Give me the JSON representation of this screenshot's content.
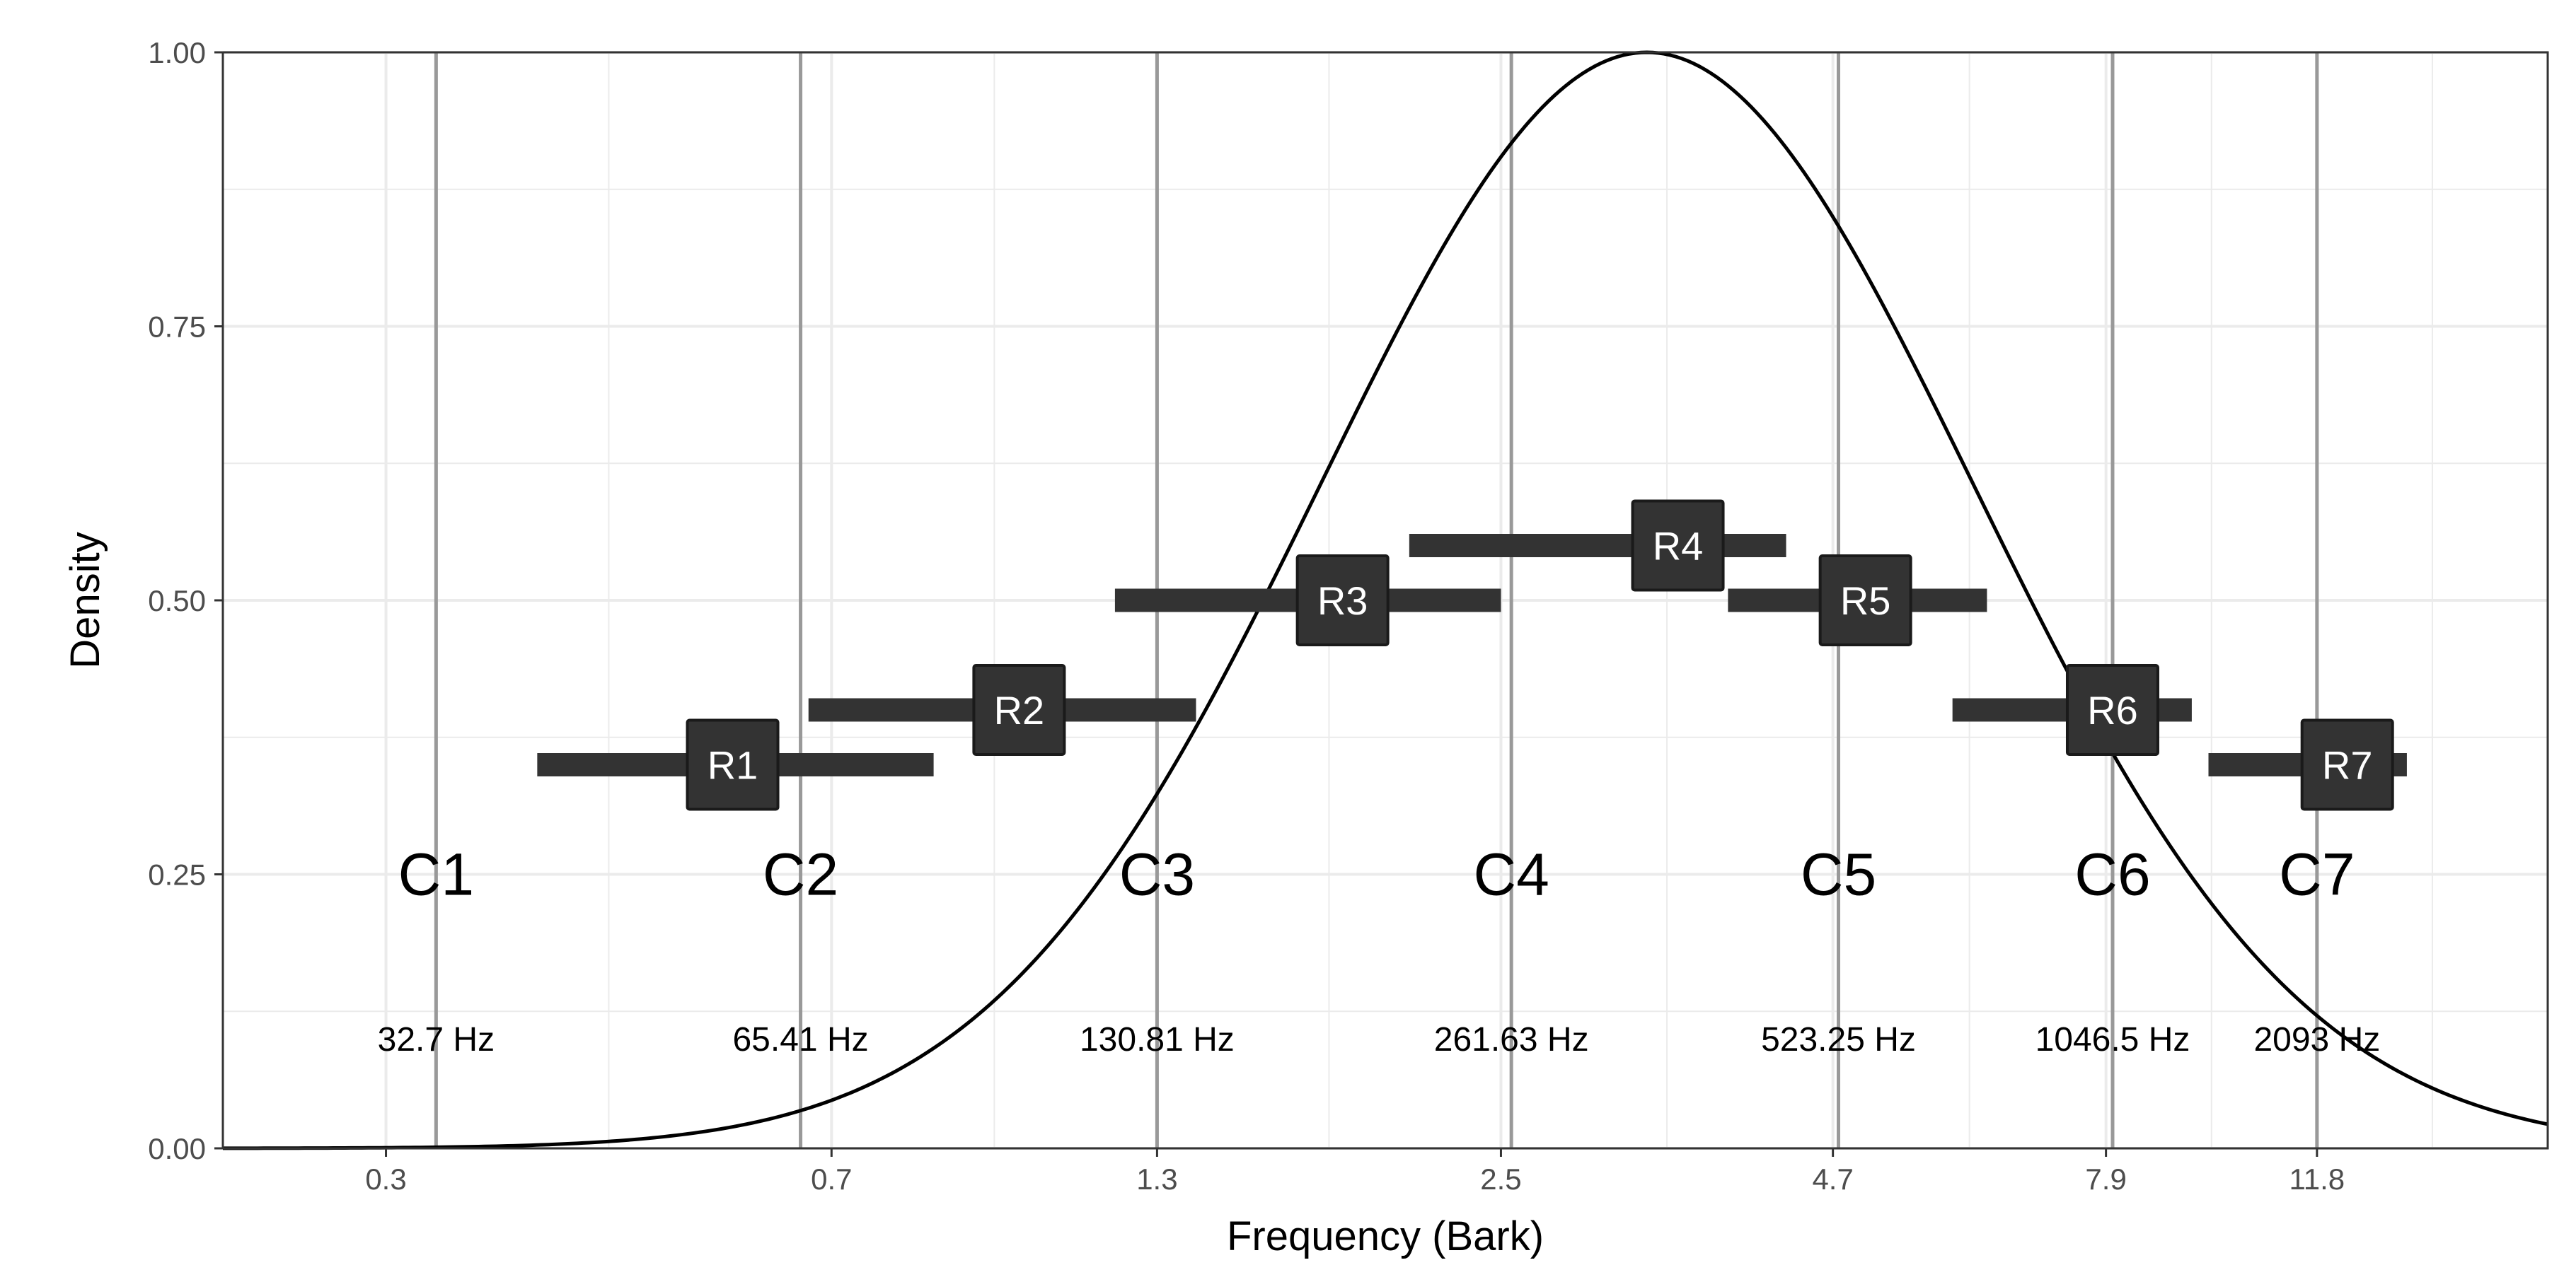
{
  "chart_data": {
    "type": "line",
    "title": "",
    "xlabel": "Frequency (Bark)",
    "ylabel": "Density",
    "xscale": "bark",
    "grid": true,
    "theme": "bw",
    "xlim": [
      0.22,
      18.3
    ],
    "ylim": [
      0,
      1
    ],
    "x_ticks": [
      0.3,
      0.7,
      1.3,
      2.5,
      4.7,
      7.9,
      11.8
    ],
    "x_tick_labels": [
      "0.3",
      "0.7",
      "1.3",
      "2.5",
      "4.7",
      "7.9",
      "11.8"
    ],
    "y_ticks": [
      0,
      0.25,
      0.5,
      0.75,
      1
    ],
    "y_tick_labels": [
      "0.00",
      "0.25",
      "0.50",
      "0.75",
      "1.00"
    ],
    "density_curve": {
      "peak_bark": 3.3,
      "peak_density": 1.0,
      "spread": "gaussian in log-frequency",
      "color": "#000000"
    },
    "notes": [
      {
        "label": "C1",
        "hz": "32.7 Hz",
        "bark": 0.33
      },
      {
        "label": "C2",
        "hz": "65.41 Hz",
        "bark": 0.66
      },
      {
        "label": "C3",
        "hz": "130.81 Hz",
        "bark": 1.3
      },
      {
        "label": "C4",
        "hz": "261.63 Hz",
        "bark": 2.55
      },
      {
        "label": "C5",
        "hz": "523.25 Hz",
        "bark": 4.75
      },
      {
        "label": "C6",
        "hz": "1046.5 Hz",
        "bark": 8.0
      },
      {
        "label": "C7",
        "hz": "2093 Hz",
        "bark": 11.8
      }
    ],
    "note_label_y": 0.25,
    "hz_label_y": 0.1,
    "ranges": [
      {
        "label": "R1",
        "x_min": 0.4,
        "x_max": 0.85,
        "center": 0.58,
        "y": 0.35
      },
      {
        "label": "R2",
        "x_min": 0.67,
        "x_max": 1.4,
        "center": 1.0,
        "y": 0.4
      },
      {
        "label": "R3",
        "x_min": 1.2,
        "x_max": 2.5,
        "center": 1.85,
        "y": 0.5
      },
      {
        "label": "R4",
        "x_min": 2.1,
        "x_max": 4.3,
        "center": 3.5,
        "y": 0.55
      },
      {
        "label": "R5",
        "x_min": 3.85,
        "x_max": 6.3,
        "center": 5.0,
        "y": 0.5
      },
      {
        "label": "R6",
        "x_min": 5.9,
        "x_max": 9.3,
        "center": 8.0,
        "y": 0.4
      },
      {
        "label": "R7",
        "x_min": 9.6,
        "x_max": 14.0,
        "center": 12.5,
        "y": 0.35
      }
    ],
    "range_color": "#333333",
    "note_line_color": "#999999",
    "grid_color": "#ebebeb"
  }
}
